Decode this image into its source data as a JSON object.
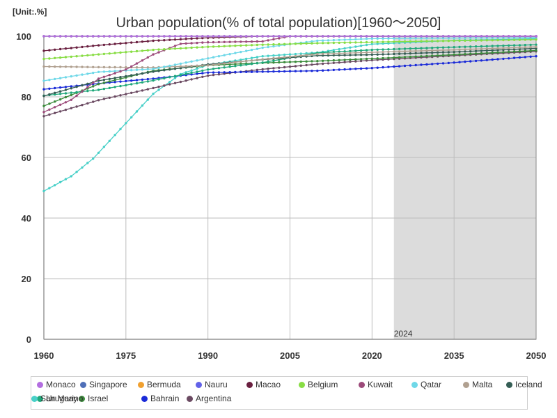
{
  "chart_data": {
    "type": "line",
    "title": "Urban population(% of total population)[1960～2050]",
    "unit_label": "[Unit:.%]",
    "xlabel": "",
    "ylabel": "",
    "xlim": [
      1960,
      2050
    ],
    "ylim": [
      0,
      100
    ],
    "x_ticks": [
      1960,
      1975,
      1990,
      2005,
      2020,
      2035,
      2050
    ],
    "y_ticks": [
      0,
      20,
      40,
      60,
      80,
      100
    ],
    "highlight_start": 2024,
    "highlight_label": "2024",
    "grid": true,
    "legend_position": "bottom",
    "series": [
      {
        "name": "Monaco",
        "color": "#b36ee0",
        "points": [
          [
            1960,
            100
          ],
          [
            2050,
            100
          ]
        ]
      },
      {
        "name": "Singapore",
        "color": "#4f6fb8",
        "points": [
          [
            1960,
            100
          ],
          [
            2050,
            100
          ]
        ]
      },
      {
        "name": "Bermuda",
        "color": "#f0a030",
        "points": [
          [
            1960,
            100
          ],
          [
            2050,
            100
          ]
        ]
      },
      {
        "name": "Nauru",
        "color": "#6262e8",
        "points": [
          [
            1960,
            100
          ],
          [
            2050,
            100
          ]
        ]
      },
      {
        "name": "Macao",
        "color": "#6a2040",
        "points": [
          [
            1960,
            95.2
          ],
          [
            1970,
            97
          ],
          [
            1980,
            98.5
          ],
          [
            1990,
            99.5
          ],
          [
            2000,
            100
          ],
          [
            2050,
            100
          ]
        ]
      },
      {
        "name": "Belgium",
        "color": "#88dd44",
        "points": [
          [
            1960,
            92.5
          ],
          [
            1970,
            94
          ],
          [
            1980,
            95.5
          ],
          [
            1990,
            96.5
          ],
          [
            2000,
            97.2
          ],
          [
            2010,
            97.7
          ],
          [
            2024,
            98.2
          ],
          [
            2050,
            98.9
          ]
        ]
      },
      {
        "name": "Kuwait",
        "color": "#9c4a7a",
        "points": [
          [
            1960,
            75
          ],
          [
            1965,
            79
          ],
          [
            1970,
            86
          ],
          [
            1975,
            89
          ],
          [
            1980,
            94
          ],
          [
            1985,
            97.5
          ],
          [
            1990,
            98
          ],
          [
            2000,
            98.3
          ],
          [
            2005,
            100
          ],
          [
            2050,
            100
          ]
        ]
      },
      {
        "name": "Qatar",
        "color": "#6fd8e8",
        "points": [
          [
            1960,
            85.3
          ],
          [
            1970,
            88.2
          ],
          [
            1980,
            89.2
          ],
          [
            1990,
            92.7
          ],
          [
            2000,
            96.2
          ],
          [
            2010,
            98.5
          ],
          [
            2020,
            99.2
          ],
          [
            2050,
            99.6
          ]
        ]
      },
      {
        "name": "Malta",
        "color": "#b0a090",
        "points": [
          [
            1960,
            90
          ],
          [
            1970,
            89.8
          ],
          [
            1980,
            89.7
          ],
          [
            1990,
            90.4
          ],
          [
            2000,
            92.4
          ],
          [
            2010,
            94.1
          ],
          [
            2020,
            94.7
          ],
          [
            2035,
            95.5
          ],
          [
            2050,
            96.5
          ]
        ]
      },
      {
        "name": "Iceland",
        "color": "#355e55",
        "points": [
          [
            1960,
            80.3
          ],
          [
            1970,
            85.3
          ],
          [
            1980,
            88.3
          ],
          [
            1990,
            90.7
          ],
          [
            2000,
            92.3
          ],
          [
            2010,
            93.6
          ],
          [
            2020,
            93.9
          ],
          [
            2035,
            94.8
          ],
          [
            2050,
            96
          ]
        ]
      },
      {
        "name": "Uruguay",
        "color": "#1fa87a",
        "points": [
          [
            1960,
            80.4
          ],
          [
            1970,
            82.3
          ],
          [
            1980,
            85.4
          ],
          [
            1990,
            89
          ],
          [
            2000,
            91.3
          ],
          [
            2010,
            94.5
          ],
          [
            2020,
            95.5
          ],
          [
            2035,
            96.4
          ],
          [
            2050,
            97.2
          ]
        ]
      },
      {
        "name": "Israel",
        "color": "#3b8b3b",
        "points": [
          [
            1960,
            77
          ],
          [
            1970,
            84.2
          ],
          [
            1980,
            88.6
          ],
          [
            1990,
            90.4
          ],
          [
            2000,
            91.2
          ],
          [
            2010,
            91.8
          ],
          [
            2020,
            92.6
          ],
          [
            2035,
            93.9
          ],
          [
            2050,
            95.3
          ]
        ]
      },
      {
        "name": "Bahrain",
        "color": "#1a2ad8",
        "points": [
          [
            1960,
            82.5
          ],
          [
            1970,
            84.4
          ],
          [
            1980,
            86
          ],
          [
            1990,
            88
          ],
          [
            2000,
            88.3
          ],
          [
            2010,
            88.6
          ],
          [
            2020,
            89.5
          ],
          [
            2035,
            91.3
          ],
          [
            2050,
            93.4
          ]
        ]
      },
      {
        "name": "Argentina",
        "color": "#6b4a62",
        "points": [
          [
            1960,
            73.6
          ],
          [
            1970,
            78.9
          ],
          [
            1980,
            82.9
          ],
          [
            1990,
            87
          ],
          [
            2000,
            89.1
          ],
          [
            2010,
            90.8
          ],
          [
            2020,
            92.1
          ],
          [
            2035,
            93.6
          ],
          [
            2050,
            95
          ]
        ]
      },
      {
        "name": "San Marino",
        "color": "#48d0c8",
        "points": [
          [
            1960,
            48.9
          ],
          [
            1965,
            53.8
          ],
          [
            1969,
            59.6
          ],
          [
            1975,
            71.3
          ],
          [
            1980,
            81
          ],
          [
            1985,
            87.5
          ],
          [
            1990,
            90.5
          ],
          [
            2000,
            93.4
          ],
          [
            2010,
            94.6
          ],
          [
            2020,
            97.4
          ],
          [
            2035,
            98.6
          ],
          [
            2050,
            99.2
          ]
        ]
      }
    ]
  }
}
